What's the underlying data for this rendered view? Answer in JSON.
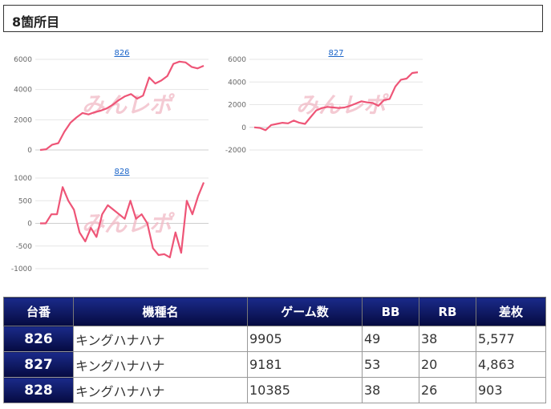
{
  "section": {
    "title": "8箇所目"
  },
  "watermark": "みんレポ",
  "colors": {
    "line": "#ee5577",
    "grid": "#e6e6e6",
    "header_dark": "#050a40"
  },
  "chart_data": [
    {
      "type": "line",
      "title": "826",
      "yticks": [
        "6000",
        "4000",
        "2000",
        "0"
      ],
      "ylim": [
        0,
        6000
      ],
      "values": [
        0,
        50,
        350,
        450,
        1200,
        1800,
        2150,
        2450,
        2350,
        2500,
        2600,
        2750,
        3000,
        3300,
        3550,
        3700,
        3400,
        3600,
        4800,
        4400,
        4600,
        4900,
        5700,
        5850,
        5800,
        5500,
        5400,
        5577
      ]
    },
    {
      "type": "line",
      "title": "827",
      "yticks": [
        "6000",
        "4000",
        "2000",
        "0",
        "-2000"
      ],
      "ylim": [
        -2000,
        6000
      ],
      "values": [
        0,
        -50,
        -250,
        200,
        300,
        400,
        350,
        600,
        400,
        300,
        900,
        1500,
        1700,
        1800,
        1750,
        1700,
        1750,
        1900,
        2100,
        2300,
        2200,
        2150,
        1900,
        2400,
        2500,
        3600,
        4200,
        4300,
        4800,
        4863
      ]
    },
    {
      "type": "line",
      "title": "828",
      "yticks": [
        "1000",
        "500",
        "0",
        "-500",
        "-1000"
      ],
      "ylim": [
        -1000,
        1000
      ],
      "values": [
        0,
        0,
        200,
        200,
        800,
        500,
        300,
        -200,
        -400,
        -100,
        -300,
        200,
        400,
        300,
        200,
        100,
        500,
        100,
        200,
        0,
        -550,
        -700,
        -680,
        -750,
        -200,
        -650,
        500,
        200,
        600,
        903
      ]
    }
  ],
  "table": {
    "headers": [
      "台番",
      "機種名",
      "ゲーム数",
      "BB",
      "RB",
      "差枚"
    ],
    "rows": [
      [
        "826",
        "キングハナハナ",
        "9905",
        "49",
        "38",
        "5,577"
      ],
      [
        "827",
        "キングハナハナ",
        "9181",
        "53",
        "20",
        "4,863"
      ],
      [
        "828",
        "キングハナハナ",
        "10385",
        "38",
        "26",
        "903"
      ]
    ]
  }
}
